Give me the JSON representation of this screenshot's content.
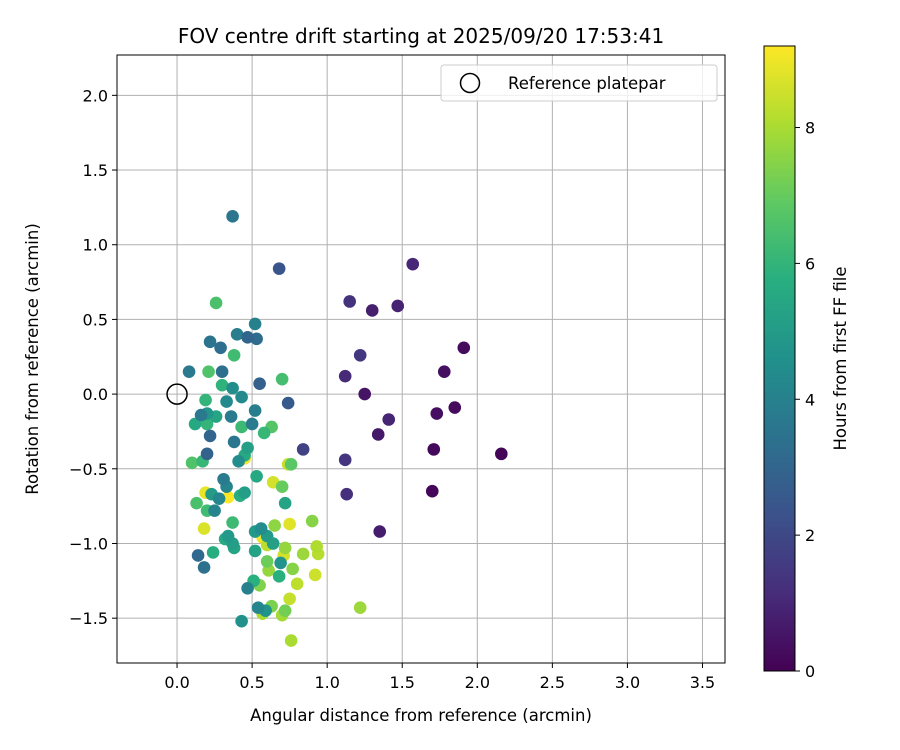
{
  "chart_data": {
    "type": "scatter",
    "title": "FOV centre drift starting at 2025/09/20 17:53:41",
    "xlabel": "Angular distance from reference (arcmin)",
    "ylabel": "Rotation from reference (arcmin)",
    "xlim": [
      -0.4,
      3.65
    ],
    "ylim": [
      -1.8,
      2.27
    ],
    "xticks": [
      0.0,
      0.5,
      1.0,
      1.5,
      2.0,
      2.5,
      3.0,
      3.5
    ],
    "xtick_labels": [
      "0.0",
      "0.5",
      "1.0",
      "1.5",
      "2.0",
      "2.5",
      "3.0",
      "3.5"
    ],
    "yticks": [
      -1.5,
      -1.0,
      -0.5,
      0.0,
      0.5,
      1.0,
      1.5,
      2.0
    ],
    "ytick_labels": [
      "−1.5",
      "−1.0",
      "−0.5",
      "0.0",
      "0.5",
      "1.0",
      "1.5",
      "2.0"
    ],
    "grid": true,
    "legend": {
      "label": "Reference platepar",
      "placement": "top-right"
    },
    "reference_point": {
      "x": 0.0,
      "y": 0.0
    },
    "colorbar": {
      "label": "Hours from first FF file",
      "min": 0,
      "max": 9.2,
      "colormap": "viridis",
      "ticks": [
        0,
        2,
        4,
        6,
        8
      ],
      "tick_labels": [
        "0",
        "2",
        "4",
        "6",
        "8"
      ]
    },
    "points": [
      {
        "x": 2.16,
        "y": -0.4,
        "h": 0.1
      },
      {
        "x": 1.7,
        "y": -0.65,
        "h": 0.15
      },
      {
        "x": 1.71,
        "y": -0.37,
        "h": 0.2
      },
      {
        "x": 1.85,
        "y": -0.09,
        "h": 0.25
      },
      {
        "x": 1.91,
        "y": 0.31,
        "h": 0.3
      },
      {
        "x": 1.73,
        "y": -0.13,
        "h": 0.35
      },
      {
        "x": 1.78,
        "y": 0.15,
        "h": 0.4
      },
      {
        "x": 1.25,
        "y": 0.0,
        "h": 0.5
      },
      {
        "x": 1.34,
        "y": -0.27,
        "h": 0.6
      },
      {
        "x": 1.35,
        "y": -0.92,
        "h": 0.7
      },
      {
        "x": 1.3,
        "y": 0.56,
        "h": 0.8
      },
      {
        "x": 1.47,
        "y": 0.59,
        "h": 0.9
      },
      {
        "x": 1.41,
        "y": -0.17,
        "h": 0.95
      },
      {
        "x": 1.57,
        "y": 0.87,
        "h": 1.0
      },
      {
        "x": 1.12,
        "y": 0.12,
        "h": 1.1
      },
      {
        "x": 1.13,
        "y": -0.67,
        "h": 1.2
      },
      {
        "x": 1.15,
        "y": 0.62,
        "h": 1.3
      },
      {
        "x": 1.12,
        "y": -0.44,
        "h": 1.4
      },
      {
        "x": 1.22,
        "y": 0.26,
        "h": 1.5
      },
      {
        "x": 0.84,
        "y": -0.37,
        "h": 1.8
      },
      {
        "x": 0.68,
        "y": 0.84,
        "h": 2.4
      },
      {
        "x": 0.74,
        "y": -0.06,
        "h": 2.6
      },
      {
        "x": 0.55,
        "y": 0.07,
        "h": 2.8
      },
      {
        "x": 0.2,
        "y": -0.4,
        "h": 2.9
      },
      {
        "x": 0.22,
        "y": -0.28,
        "h": 3.0
      },
      {
        "x": 0.47,
        "y": 0.38,
        "h": 3.0
      },
      {
        "x": 0.14,
        "y": -1.08,
        "h": 3.1
      },
      {
        "x": 0.53,
        "y": 0.37,
        "h": 3.2
      },
      {
        "x": 0.29,
        "y": 0.31,
        "h": 3.3
      },
      {
        "x": 0.3,
        "y": 0.15,
        "h": 3.3
      },
      {
        "x": 0.18,
        "y": -1.16,
        "h": 3.4
      },
      {
        "x": 0.22,
        "y": 0.35,
        "h": 3.5
      },
      {
        "x": 0.37,
        "y": 1.19,
        "h": 3.6
      },
      {
        "x": 0.38,
        "y": -0.32,
        "h": 3.6
      },
      {
        "x": 0.08,
        "y": 0.15,
        "h": 3.7
      },
      {
        "x": 0.16,
        "y": -0.14,
        "h": 3.7
      },
      {
        "x": 0.31,
        "y": -0.57,
        "h": 3.8
      },
      {
        "x": 0.36,
        "y": -0.15,
        "h": 3.8
      },
      {
        "x": 0.5,
        "y": -0.2,
        "h": 3.8
      },
      {
        "x": 0.52,
        "y": -0.11,
        "h": 3.9
      },
      {
        "x": 0.4,
        "y": 0.4,
        "h": 3.9
      },
      {
        "x": 0.47,
        "y": -1.3,
        "h": 4.0
      },
      {
        "x": 0.52,
        "y": 0.47,
        "h": 4.0
      },
      {
        "x": 0.25,
        "y": -0.78,
        "h": 4.1
      },
      {
        "x": 0.33,
        "y": -0.62,
        "h": 4.1
      },
      {
        "x": 0.28,
        "y": -0.7,
        "h": 4.2
      },
      {
        "x": 0.54,
        "y": -1.43,
        "h": 4.2
      },
      {
        "x": 0.43,
        "y": -0.02,
        "h": 4.3
      },
      {
        "x": 0.33,
        "y": -0.05,
        "h": 4.3
      },
      {
        "x": 0.41,
        "y": -0.45,
        "h": 4.4
      },
      {
        "x": 0.56,
        "y": -0.9,
        "h": 4.4
      },
      {
        "x": 0.37,
        "y": 0.04,
        "h": 4.5
      },
      {
        "x": 0.43,
        "y": -1.52,
        "h": 4.6
      },
      {
        "x": 0.59,
        "y": -1.45,
        "h": 4.7
      },
      {
        "x": 0.69,
        "y": -1.13,
        "h": 4.7
      },
      {
        "x": 0.2,
        "y": -0.13,
        "h": 4.8
      },
      {
        "x": 0.34,
        "y": -0.95,
        "h": 4.9
      },
      {
        "x": 0.52,
        "y": -0.92,
        "h": 4.9
      },
      {
        "x": 0.6,
        "y": -0.95,
        "h": 5.0
      },
      {
        "x": 0.23,
        "y": -0.67,
        "h": 5.0
      },
      {
        "x": 0.37,
        "y": -1.0,
        "h": 5.1
      },
      {
        "x": 0.45,
        "y": -0.66,
        "h": 5.1
      },
      {
        "x": 0.47,
        "y": -0.36,
        "h": 5.2
      },
      {
        "x": 0.64,
        "y": -1.0,
        "h": 5.2
      },
      {
        "x": 0.52,
        "y": -1.05,
        "h": 5.3
      },
      {
        "x": 0.72,
        "y": -0.73,
        "h": 5.3
      },
      {
        "x": 0.38,
        "y": -1.03,
        "h": 5.4
      },
      {
        "x": 0.26,
        "y": -0.15,
        "h": 5.4
      },
      {
        "x": 0.53,
        "y": -0.55,
        "h": 5.5
      },
      {
        "x": 0.12,
        "y": -0.2,
        "h": 5.5
      },
      {
        "x": 0.32,
        "y": -0.97,
        "h": 5.6
      },
      {
        "x": 0.45,
        "y": -0.41,
        "h": 5.6
      },
      {
        "x": 0.42,
        "y": -0.68,
        "h": 5.7
      },
      {
        "x": 0.24,
        "y": -1.06,
        "h": 5.7
      },
      {
        "x": 0.51,
        "y": -1.25,
        "h": 5.8
      },
      {
        "x": 0.68,
        "y": -1.22,
        "h": 5.8
      },
      {
        "x": 0.3,
        "y": 0.06,
        "h": 5.9
      },
      {
        "x": 0.19,
        "y": -0.04,
        "h": 6.0
      },
      {
        "x": 0.2,
        "y": -0.2,
        "h": 6.0
      },
      {
        "x": 0.58,
        "y": -0.26,
        "h": 6.1
      },
      {
        "x": 0.17,
        "y": -0.45,
        "h": 6.1
      },
      {
        "x": 0.37,
        "y": -0.86,
        "h": 6.2
      },
      {
        "x": 0.43,
        "y": -0.22,
        "h": 6.2
      },
      {
        "x": 0.38,
        "y": 0.26,
        "h": 6.3
      },
      {
        "x": 0.2,
        "y": -0.78,
        "h": 6.3
      },
      {
        "x": 0.7,
        "y": 0.1,
        "h": 6.4
      },
      {
        "x": 0.26,
        "y": 0.61,
        "h": 6.5
      },
      {
        "x": 0.13,
        "y": -0.73,
        "h": 6.5
      },
      {
        "x": 0.1,
        "y": -0.46,
        "h": 6.6
      },
      {
        "x": 0.21,
        "y": 0.15,
        "h": 6.6
      },
      {
        "x": 0.63,
        "y": -0.22,
        "h": 6.7
      },
      {
        "x": 0.76,
        "y": -0.47,
        "h": 6.8
      },
      {
        "x": 0.7,
        "y": -0.62,
        "h": 7.0
      },
      {
        "x": 0.6,
        "y": -1.12,
        "h": 7.1
      },
      {
        "x": 0.72,
        "y": -1.45,
        "h": 7.2
      },
      {
        "x": 0.63,
        "y": -1.42,
        "h": 7.3
      },
      {
        "x": 0.55,
        "y": -1.28,
        "h": 7.4
      },
      {
        "x": 0.9,
        "y": -0.85,
        "h": 7.5
      },
      {
        "x": 0.77,
        "y": -1.17,
        "h": 7.5
      },
      {
        "x": 0.65,
        "y": -0.88,
        "h": 7.6
      },
      {
        "x": 0.61,
        "y": -1.18,
        "h": 7.7
      },
      {
        "x": 0.72,
        "y": -1.03,
        "h": 7.7
      },
      {
        "x": 0.84,
        "y": -1.07,
        "h": 7.8
      },
      {
        "x": 1.22,
        "y": -1.43,
        "h": 7.8
      },
      {
        "x": 0.7,
        "y": -1.48,
        "h": 7.9
      },
      {
        "x": 0.57,
        "y": -1.47,
        "h": 8.0
      },
      {
        "x": 0.76,
        "y": -1.65,
        "h": 8.0
      },
      {
        "x": 0.93,
        "y": -1.02,
        "h": 8.1
      },
      {
        "x": 0.94,
        "y": -1.07,
        "h": 8.2
      },
      {
        "x": 0.6,
        "y": -1.01,
        "h": 8.3
      },
      {
        "x": 0.8,
        "y": -1.27,
        "h": 8.3
      },
      {
        "x": 0.75,
        "y": -1.37,
        "h": 8.4
      },
      {
        "x": 0.74,
        "y": -0.47,
        "h": 8.4
      },
      {
        "x": 0.92,
        "y": -1.21,
        "h": 8.5
      },
      {
        "x": 0.71,
        "y": -1.08,
        "h": 8.6
      },
      {
        "x": 0.64,
        "y": -0.59,
        "h": 8.6
      },
      {
        "x": 0.18,
        "y": -0.9,
        "h": 8.7
      },
      {
        "x": 0.75,
        "y": -0.87,
        "h": 8.8
      },
      {
        "x": 0.19,
        "y": -0.66,
        "h": 8.9
      },
      {
        "x": 0.57,
        "y": -0.96,
        "h": 9.0
      },
      {
        "x": 0.45,
        "y": -0.43,
        "h": 9.1
      },
      {
        "x": 0.34,
        "y": -0.69,
        "h": 9.2
      }
    ]
  }
}
